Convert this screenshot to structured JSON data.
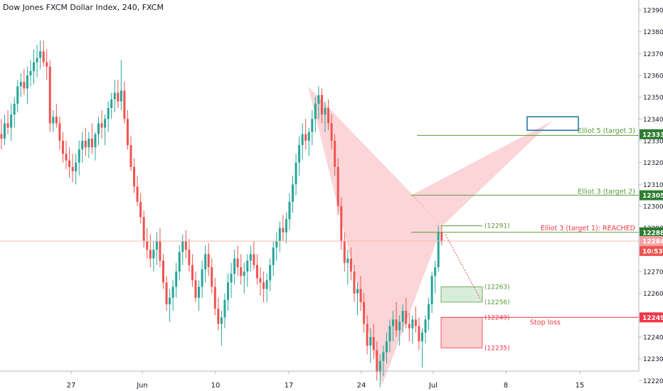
{
  "title": "Dow Jones FXCM Dollar Index, 240, FXCM",
  "colors": {
    "up": "#26a69a",
    "down": "#ef5350",
    "pattern_fill": "#f7a1a6",
    "target_line": "#5a9a3c",
    "stop": "#f23645",
    "box_blue": "#1f6f9f"
  },
  "chart_data": {
    "type": "candlestick",
    "symbol": "Dow Jones FXCM Dollar Index",
    "interval": "240",
    "source": "FXCM",
    "ylim": [
      12200,
      12395
    ],
    "y_ticks": [
      12220,
      12230,
      12240,
      12250,
      12260,
      12270,
      12280,
      12290,
      12300,
      12310,
      12320,
      12330,
      12340,
      12350,
      12360,
      12370,
      12380,
      12390
    ],
    "x_ticks": [
      "27",
      "Jun",
      "10",
      "17",
      "24",
      "Jul",
      "8",
      "15"
    ],
    "ohlc": [
      [
        12333,
        12340,
        12326,
        12331
      ],
      [
        12331,
        12342,
        12328,
        12338
      ],
      [
        12338,
        12344,
        12333,
        12336
      ],
      [
        12336,
        12347,
        12330,
        12342
      ],
      [
        12342,
        12350,
        12336,
        12347
      ],
      [
        12347,
        12358,
        12343,
        12355
      ],
      [
        12355,
        12361,
        12350,
        12357
      ],
      [
        12357,
        12363,
        12351,
        12354
      ],
      [
        12354,
        12364,
        12347,
        12360
      ],
      [
        12360,
        12367,
        12355,
        12362
      ],
      [
        12362,
        12372,
        12356,
        12366
      ],
      [
        12366,
        12374,
        12359,
        12368
      ],
      [
        12368,
        12376,
        12363,
        12371
      ],
      [
        12371,
        12376,
        12364,
        12366
      ],
      [
        12366,
        12372,
        12358,
        12364
      ],
      [
        12364,
        12367,
        12334,
        12338
      ],
      [
        12338,
        12344,
        12334,
        12341
      ],
      [
        12341,
        12347,
        12336,
        12338
      ],
      [
        12338,
        12341,
        12326,
        12330
      ],
      [
        12330,
        12334,
        12320,
        12324
      ],
      [
        12324,
        12330,
        12317,
        12321
      ],
      [
        12321,
        12327,
        12313,
        12318
      ],
      [
        12318,
        12324,
        12311,
        12316
      ],
      [
        12316,
        12324,
        12310,
        12320
      ],
      [
        12320,
        12330,
        12314,
        12326
      ],
      [
        12326,
        12334,
        12320,
        12330
      ],
      [
        12330,
        12336,
        12323,
        12327
      ],
      [
        12327,
        12334,
        12322,
        12331
      ],
      [
        12331,
        12338,
        12324,
        12327
      ],
      [
        12327,
        12334,
        12321,
        12333
      ],
      [
        12333,
        12341,
        12328,
        12338
      ],
      [
        12338,
        12344,
        12331,
        12336
      ],
      [
        12336,
        12342,
        12328,
        12340
      ],
      [
        12340,
        12348,
        12334,
        12345
      ],
      [
        12345,
        12352,
        12340,
        12349
      ],
      [
        12349,
        12358,
        12343,
        12352
      ],
      [
        12352,
        12358,
        12345,
        12348
      ],
      [
        12348,
        12367,
        12344,
        12353
      ],
      [
        12353,
        12357,
        12338,
        12340
      ],
      [
        12340,
        12344,
        12326,
        12328
      ],
      [
        12328,
        12332,
        12316,
        12318
      ],
      [
        12318,
        12322,
        12306,
        12309
      ],
      [
        12309,
        12314,
        12300,
        12302
      ],
      [
        12302,
        12306,
        12292,
        12295
      ],
      [
        12295,
        12298,
        12281,
        12284
      ],
      [
        12284,
        12290,
        12276,
        12280
      ],
      [
        12280,
        12287,
        12272,
        12276
      ],
      [
        12276,
        12284,
        12270,
        12280
      ],
      [
        12280,
        12288,
        12273,
        12284
      ],
      [
        12284,
        12290,
        12272,
        12275
      ],
      [
        12275,
        12278,
        12262,
        12265
      ],
      [
        12265,
        12268,
        12252,
        12255
      ],
      [
        12255,
        12262,
        12247,
        12258
      ],
      [
        12258,
        12266,
        12252,
        12263
      ],
      [
        12263,
        12274,
        12258,
        12270
      ],
      [
        12270,
        12282,
        12266,
        12279
      ],
      [
        12279,
        12287,
        12273,
        12284
      ],
      [
        12284,
        12289,
        12276,
        12280
      ],
      [
        12280,
        12285,
        12270,
        12273
      ],
      [
        12273,
        12278,
        12263,
        12266
      ],
      [
        12266,
        12270,
        12256,
        12258
      ],
      [
        12258,
        12266,
        12252,
        12263
      ],
      [
        12263,
        12275,
        12258,
        12271
      ],
      [
        12271,
        12282,
        12265,
        12278
      ],
      [
        12278,
        12283,
        12268,
        12272
      ],
      [
        12272,
        12276,
        12260,
        12263
      ],
      [
        12263,
        12267,
        12250,
        12253
      ],
      [
        12253,
        12258,
        12243,
        12246
      ],
      [
        12246,
        12252,
        12236,
        12249
      ],
      [
        12249,
        12260,
        12244,
        12257
      ],
      [
        12257,
        12269,
        12252,
        12265
      ],
      [
        12265,
        12274,
        12258,
        12269
      ],
      [
        12269,
        12280,
        12264,
        12276
      ],
      [
        12276,
        12282,
        12268,
        12272
      ],
      [
        12272,
        12278,
        12264,
        12268
      ],
      [
        12268,
        12274,
        12260,
        12270
      ],
      [
        12270,
        12278,
        12263,
        12275
      ],
      [
        12275,
        12282,
        12270,
        12278
      ],
      [
        12278,
        12284,
        12271,
        12273
      ],
      [
        12273,
        12278,
        12264,
        12267
      ],
      [
        12267,
        12272,
        12259,
        12265
      ],
      [
        12265,
        12270,
        12256,
        12262
      ],
      [
        12262,
        12269,
        12256,
        12266
      ],
      [
        12266,
        12276,
        12261,
        12273
      ],
      [
        12273,
        12284,
        12268,
        12281
      ],
      [
        12281,
        12288,
        12275,
        12284
      ],
      [
        12284,
        12293,
        12279,
        12290
      ],
      [
        12290,
        12296,
        12284,
        12288
      ],
      [
        12288,
        12297,
        12283,
        12294
      ],
      [
        12294,
        12306,
        12289,
        12302
      ],
      [
        12302,
        12314,
        12297,
        12310
      ],
      [
        12310,
        12324,
        12305,
        12320
      ],
      [
        12320,
        12332,
        12314,
        12328
      ],
      [
        12328,
        12338,
        12321,
        12333
      ],
      [
        12333,
        12340,
        12326,
        12330
      ],
      [
        12330,
        12336,
        12323,
        12334
      ],
      [
        12334,
        12344,
        12328,
        12340
      ],
      [
        12340,
        12350,
        12334,
        12347
      ],
      [
        12347,
        12355,
        12340,
        12351
      ],
      [
        12351,
        12354,
        12338,
        12342
      ],
      [
        12342,
        12348,
        12334,
        12345
      ],
      [
        12345,
        12349,
        12335,
        12338
      ],
      [
        12338,
        12342,
        12326,
        12330
      ],
      [
        12330,
        12333,
        12314,
        12318
      ],
      [
        12318,
        12322,
        12296,
        12300
      ],
      [
        12300,
        12304,
        12280,
        12284
      ],
      [
        12284,
        12288,
        12270,
        12274
      ],
      [
        12274,
        12280,
        12264,
        12276
      ],
      [
        12276,
        12281,
        12266,
        12270
      ],
      [
        12270,
        12273,
        12256,
        12260
      ],
      [
        12260,
        12265,
        12250,
        12262
      ],
      [
        12262,
        12268,
        12252,
        12256
      ],
      [
        12256,
        12260,
        12242,
        12246
      ],
      [
        12246,
        12250,
        12232,
        12236
      ],
      [
        12236,
        12244,
        12228,
        12240
      ],
      [
        12240,
        12246,
        12230,
        12234
      ],
      [
        12234,
        12238,
        12220,
        12224
      ],
      [
        12224,
        12232,
        12217,
        12229
      ],
      [
        12229,
        12236,
        12222,
        12233
      ],
      [
        12233,
        12242,
        12228,
        12238
      ],
      [
        12238,
        12248,
        12233,
        12245
      ],
      [
        12245,
        12252,
        12238,
        12248
      ],
      [
        12248,
        12256,
        12240,
        12243
      ],
      [
        12243,
        12250,
        12236,
        12247
      ],
      [
        12247,
        12255,
        12242,
        12252
      ],
      [
        12252,
        12258,
        12244,
        12246
      ],
      [
        12246,
        12251,
        12238,
        12244
      ],
      [
        12244,
        12250,
        12237,
        12248
      ],
      [
        12248,
        12254,
        12242,
        12245
      ],
      [
        12245,
        12249,
        12234,
        12238
      ],
      [
        12238,
        12244,
        12226,
        12242
      ],
      [
        12242,
        12250,
        12237,
        12248
      ],
      [
        12248,
        12258,
        12243,
        12255
      ],
      [
        12255,
        12270,
        12251,
        12268
      ],
      [
        12268,
        12275,
        12260,
        12272
      ],
      [
        12272,
        12291,
        12270,
        12288
      ],
      [
        12288,
        12291,
        12282,
        12284
      ]
    ],
    "annotations": [
      {
        "label": "Elliot 5 (target 3)",
        "value": 12333
      },
      {
        "label": "Elliot 3 (target 2)",
        "value": 12305
      },
      {
        "label": "Elliot 3 (target 1): REACHED",
        "value": 12288
      },
      {
        "label": "Stop loss",
        "value": 12249
      }
    ],
    "level_labels": [
      "(12291)",
      "(12263)",
      "(12256)",
      "(12249)",
      "(12235)"
    ],
    "price_badges": [
      "12333",
      "12305",
      "12288",
      "12284",
      "10:53",
      "12249"
    ]
  }
}
